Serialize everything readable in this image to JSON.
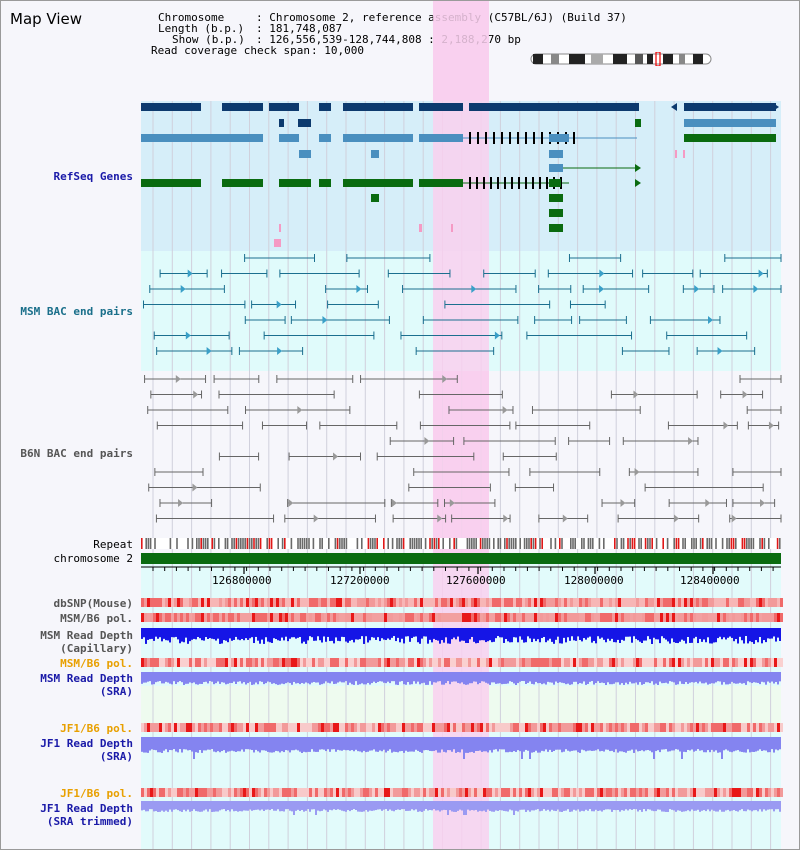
{
  "header": {
    "title": "Map View",
    "chromosome_label": "Chromosome",
    "chromosome_value": ": Chromosome 2, reference assembly (C57BL/6J) (Build 37)",
    "length_label": "Length (b.p.)",
    "length_value": ": 181,748,087",
    "show_label": "Show (b.p.)",
    "show_value": ": 126,556,539-128,744,808 : 2,188,270 bp",
    "coverage_label": "Read coverage check span",
    "coverage_value": ": 10,000"
  },
  "tracks": {
    "refseq": "RefSeq Genes",
    "msm_bac": "MSM BAC end pairs",
    "b6n_bac": "B6N BAC end pairs",
    "repeat": "Repeat",
    "chromosome": "chromosome 2",
    "dbsnp": "dbSNP(Mouse)",
    "msm_b6_pol_1": "MSM/B6 pol.",
    "msm_depth_cap_1": "MSM Read Depth",
    "msm_depth_cap_2": "(Capillary)",
    "msm_b6_pol_2": "MSM/B6 pol.",
    "msm_depth_sra_1": "MSM Read Depth",
    "msm_depth_sra_2": "(SRA)",
    "jf1_b6_pol_1": "JF1/B6 pol.",
    "jf1_depth_sra_1": "JF1 Read Depth",
    "jf1_depth_sra_2": "(SRA)",
    "jf1_b6_pol_2": "JF1/B6 pol.",
    "jf1_depth_trim_1": "JF1 Read Depth",
    "jf1_depth_trim_2": "(SRA trimmed)"
  },
  "axis": {
    "ticks": [
      "126800000",
      "127200000",
      "127600000",
      "128000000",
      "128400000"
    ]
  },
  "colors": {
    "refseq_dark": "#0d3a6e",
    "refseq_mid": "#4a8fbf",
    "refseq_green": "#0a6b10",
    "msm_bac": "#1b6f8f",
    "b6n_bac": "#666666",
    "highlight": "#f9d0ef",
    "depth_capillary": "#1515e6",
    "depth_sra": "#8484f0"
  }
}
